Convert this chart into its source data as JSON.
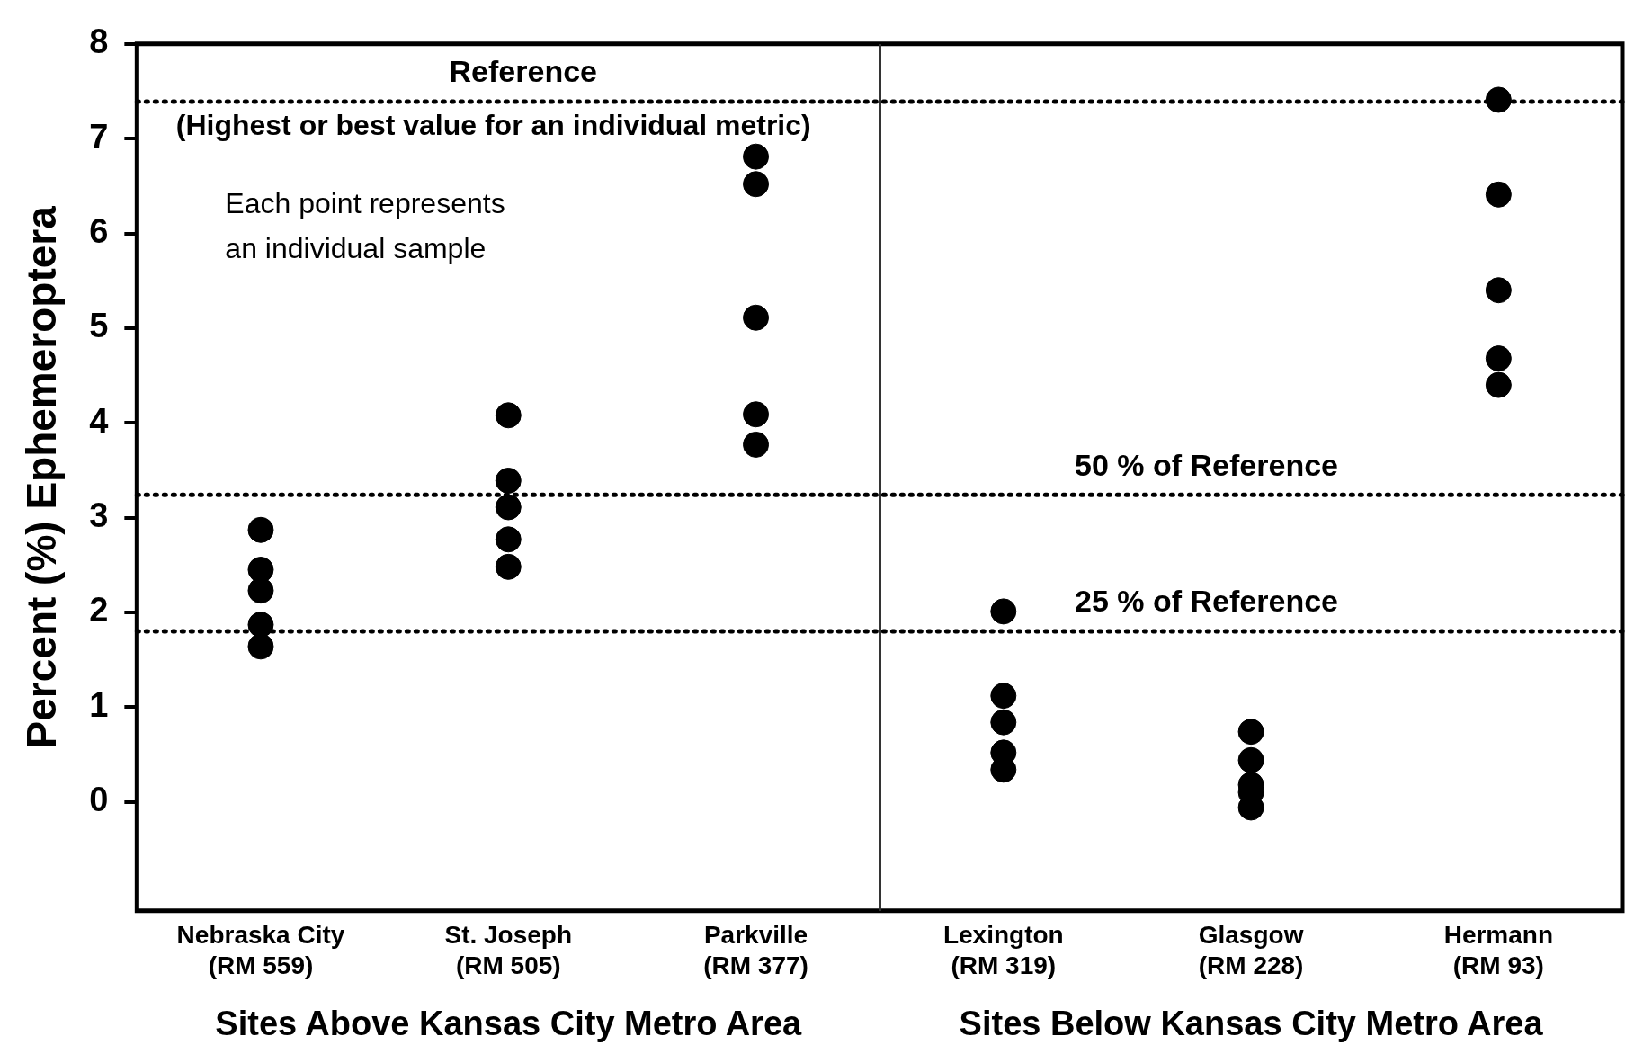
{
  "chart_data": {
    "type": "scatter",
    "ylabel": "Percent (%) Ephemeroptera",
    "categories": [
      "Nebraska City\n(RM 559)",
      "St. Joseph\n(RM 505)",
      "Parkville\n(RM 377)",
      "Lexington\n(RM 319)",
      "Glasgow\n(RM 228)",
      "Hermann\n(RM 93)"
    ],
    "series": [
      {
        "color": "#000000",
        "x": [
          "Nebraska City\n(RM 559)",
          "Nebraska City\n(RM 559)",
          "Nebraska City\n(RM 559)",
          "Nebraska City\n(RM 559)",
          "Nebraska City\n(RM 559)",
          "St. Joseph\n(RM 505)",
          "St. Joseph\n(RM 505)",
          "St. Joseph\n(RM 505)",
          "St. Joseph\n(RM 505)",
          "St. Joseph\n(RM 505)",
          "Parkville\n(RM 377)",
          "Parkville\n(RM 377)",
          "Parkville\n(RM 377)",
          "Parkville\n(RM 377)",
          "Parkville\n(RM 377)",
          "Lexington\n(RM 319)",
          "Lexington\n(RM 319)",
          "Lexington\n(RM 319)",
          "Lexington\n(RM 319)",
          "Lexington\n(RM 319)",
          "Glasgow\n(RM 228)",
          "Glasgow\n(RM 228)",
          "Glasgow\n(RM 228)",
          "Glasgow\n(RM 228)",
          "Glasgow\n(RM 228)",
          "Hermann\n(RM 93)",
          "Hermann\n(RM 93)",
          "Hermann\n(RM 93)",
          "Hermann\n(RM 93)",
          "Hermann\n(RM 93)"
        ],
        "values": [
          2.87,
          2.45,
          2.23,
          1.87,
          1.64,
          4.08,
          3.39,
          3.11,
          2.77,
          2.48,
          6.81,
          6.52,
          5.11,
          4.09,
          3.77,
          2.01,
          1.12,
          0.84,
          0.52,
          0.34,
          0.74,
          0.44,
          0.18,
          0.1,
          -0.06,
          7.41,
          6.41,
          5.4,
          4.68,
          4.4
        ]
      }
    ],
    "ylim": [
      -1.15,
      8
    ],
    "yticks": [
      0,
      1,
      2,
      3,
      4,
      5,
      6,
      7,
      8
    ],
    "ref_lines": [
      {
        "axis": "y",
        "value": 7.39,
        "label": "Reference",
        "line_style": "dotted"
      },
      {
        "axis": "y",
        "value": 3.24,
        "label": "50 % of Reference",
        "line_style": "dotted"
      },
      {
        "axis": "y",
        "value": 1.8,
        "label": "25 % of Reference",
        "line_style": "dotted"
      }
    ],
    "annotations": [
      "(Highest or best value for an individual metric)",
      "Each point represents\nan individual sample",
      "Sites Above Kansas City Metro Area",
      "Sites Below Kansas City Metro Area"
    ],
    "marker": "circle",
    "grid": false,
    "legend": false
  }
}
